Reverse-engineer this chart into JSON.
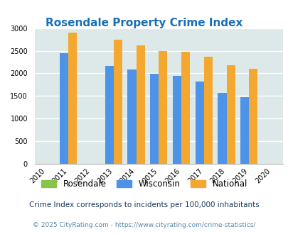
{
  "title": "Rosendale Property Crime Index",
  "all_years": [
    2010,
    2011,
    2012,
    2013,
    2014,
    2015,
    2016,
    2017,
    2018,
    2019,
    2020
  ],
  "bar_years": [
    2011,
    2013,
    2014,
    2015,
    2016,
    2017,
    2018,
    2019
  ],
  "wisconsin": [
    2450,
    2170,
    2090,
    1985,
    1950,
    1820,
    1560,
    1475
  ],
  "national": [
    2900,
    2745,
    2610,
    2500,
    2470,
    2360,
    2185,
    2100
  ],
  "wisconsin_color": "#4d94e8",
  "national_color": "#f5a830",
  "rosendale_color": "#88c44a",
  "bg_color": "#dde8e8",
  "ylim": [
    0,
    3000
  ],
  "yticks": [
    0,
    500,
    1000,
    1500,
    2000,
    2500,
    3000
  ],
  "legend_labels": [
    "Rosendale",
    "Wisconsin",
    "National"
  ],
  "footnote1": "Crime Index corresponds to incidents per 100,000 inhabitants",
  "footnote2": "© 2025 CityRating.com - https://www.cityrating.com/crime-statistics/",
  "title_color": "#1a6eb5",
  "footnote1_color": "#1a3a5c",
  "footnote2_color": "#5588aa",
  "bar_width": 0.38,
  "grid_color": "#ffffff"
}
